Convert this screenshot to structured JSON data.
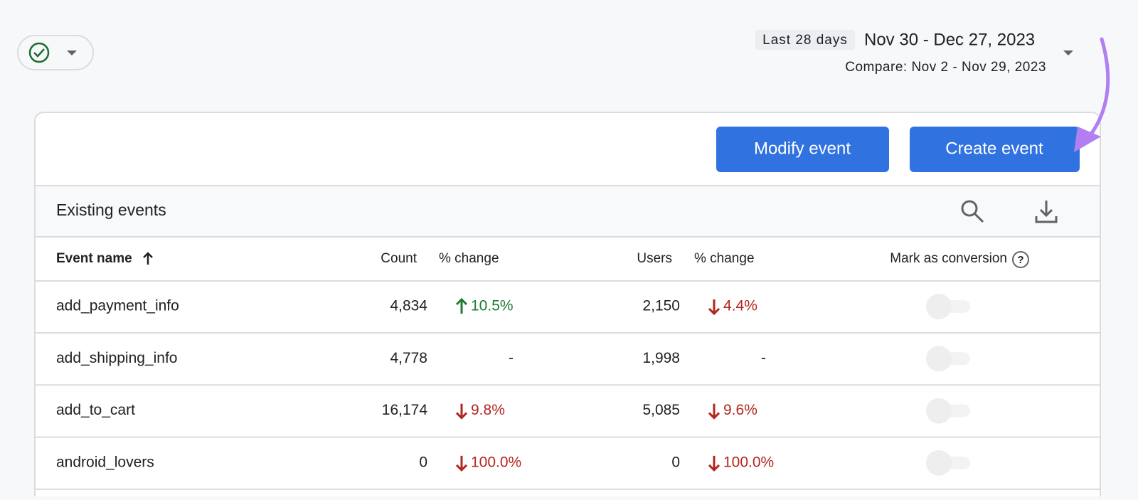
{
  "header": {
    "date_label": "Last 28 days",
    "date_range": "Nov 30 - Dec 27, 2023",
    "compare": "Compare: Nov 2 - Nov 29, 2023"
  },
  "buttons": {
    "modify": "Modify event",
    "create": "Create event"
  },
  "table": {
    "title": "Existing events",
    "columns": {
      "name": "Event name",
      "count": "Count",
      "count_change": "% change",
      "users": "Users",
      "users_change": "% change",
      "conversion": "Mark as conversion"
    },
    "rows": [
      {
        "name": "add_payment_info",
        "count": "4,834",
        "count_change": "10.5%",
        "count_trend": "up",
        "users": "2,150",
        "users_change": "4.4%",
        "users_trend": "down",
        "conversion": false
      },
      {
        "name": "add_shipping_info",
        "count": "4,778",
        "count_change": "-",
        "count_trend": null,
        "users": "1,998",
        "users_change": "-",
        "users_trend": null,
        "conversion": false
      },
      {
        "name": "add_to_cart",
        "count": "16,174",
        "count_change": "9.8%",
        "count_trend": "down",
        "users": "5,085",
        "users_change": "9.6%",
        "users_trend": "down",
        "conversion": false
      },
      {
        "name": "android_lovers",
        "count": "0",
        "count_change": "100.0%",
        "count_trend": "down",
        "users": "0",
        "users_change": "100.0%",
        "users_trend": "down",
        "conversion": false
      }
    ]
  }
}
